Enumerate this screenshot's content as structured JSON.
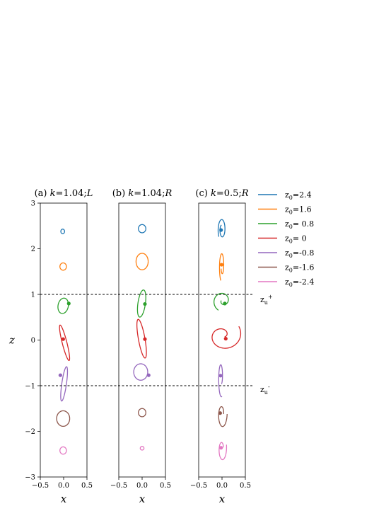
{
  "chart_data": [
    {
      "type": "line",
      "panel": "a",
      "title_prefix": "(a) ",
      "title_k": "k",
      "title_rest": "=1.04;",
      "title_mode": "L",
      "xlabel": "x",
      "ylabel": "z",
      "xlim": [
        -0.5,
        0.5
      ],
      "ylim": [
        -3,
        3
      ],
      "xticks": [
        "−0.5",
        "0.0",
        "0.5"
      ],
      "yticks": [
        "−3",
        "−2",
        "−1",
        "0",
        "1",
        "2",
        "3"
      ],
      "series": [
        {
          "color": "#1f77b4",
          "shape": "loop",
          "cx": -0.02,
          "cz": 2.38,
          "rx": 0.04,
          "rz": 0.05,
          "tilt": 0,
          "dot": null
        },
        {
          "color": "#ff7f0e",
          "shape": "loop",
          "cx": -0.01,
          "cz": 1.61,
          "rx": 0.07,
          "rz": 0.08,
          "tilt": 0,
          "dot": null
        },
        {
          "color": "#2ca02c",
          "shape": "loop",
          "cx": -0.01,
          "cz": 0.75,
          "rx": 0.11,
          "rz": 0.17,
          "tilt": -10,
          "dot": [
            0.11,
            0.8
          ]
        },
        {
          "color": "#d62728",
          "shape": "loop",
          "cx": 0.02,
          "cz": -0.06,
          "rx": 0.05,
          "rz": 0.4,
          "tilt": 14,
          "dot": [
            -0.01,
            0.02
          ]
        },
        {
          "color": "#9467bd",
          "shape": "loop",
          "cx": 0.01,
          "cz": -0.96,
          "rx": 0.05,
          "rz": 0.38,
          "tilt": -8,
          "dot": [
            -0.07,
            -0.77
          ]
        },
        {
          "color": "#8c564b",
          "shape": "loop",
          "cx": -0.01,
          "cz": -1.72,
          "rx": 0.14,
          "rz": 0.17,
          "tilt": 0,
          "dot": null
        },
        {
          "color": "#e377c2",
          "shape": "loop",
          "cx": -0.01,
          "cz": -2.42,
          "rx": 0.07,
          "rz": 0.08,
          "tilt": 0,
          "dot": null
        }
      ]
    },
    {
      "type": "line",
      "panel": "b",
      "title_prefix": "(b) ",
      "title_k": "k",
      "title_rest": "=1.04;",
      "title_mode": "R",
      "xlabel": "x",
      "ylabel": "",
      "xlim": [
        -0.5,
        0.5
      ],
      "ylim": [
        -3,
        3
      ],
      "xticks": [
        "−0.5",
        "0.0",
        "0.5"
      ],
      "yticks": [],
      "series": [
        {
          "color": "#1f77b4",
          "shape": "loop",
          "cx": 0.0,
          "cz": 2.44,
          "rx": 0.08,
          "rz": 0.09,
          "tilt": 0,
          "dot": null
        },
        {
          "color": "#ff7f0e",
          "shape": "loop",
          "cx": 0.0,
          "cz": 1.72,
          "rx": 0.13,
          "rz": 0.18,
          "tilt": 0,
          "dot": null
        },
        {
          "color": "#2ca02c",
          "shape": "loop",
          "cx": -0.01,
          "cz": 0.8,
          "rx": 0.08,
          "rz": 0.3,
          "tilt": -8,
          "dot": [
            0.06,
            0.79
          ]
        },
        {
          "color": "#d62728",
          "shape": "loop",
          "cx": -0.01,
          "cz": 0.03,
          "rx": 0.07,
          "rz": 0.43,
          "tilt": 10,
          "dot": [
            0.06,
            0.02
          ]
        },
        {
          "color": "#9467bd",
          "shape": "loop",
          "cx": -0.03,
          "cz": -0.7,
          "rx": 0.15,
          "rz": 0.18,
          "tilt": 0,
          "dot": [
            0.14,
            -0.77
          ]
        },
        {
          "color": "#8c564b",
          "shape": "loop",
          "cx": 0.0,
          "cz": -1.59,
          "rx": 0.08,
          "rz": 0.09,
          "tilt": 0,
          "dot": null
        },
        {
          "color": "#e377c2",
          "shape": "loop",
          "cx": 0.0,
          "cz": -2.37,
          "rx": 0.04,
          "rz": 0.04,
          "tilt": 0,
          "dot": null
        }
      ]
    },
    {
      "type": "line",
      "panel": "c",
      "title_prefix": "(c) ",
      "title_k": "k",
      "title_rest": "=0.5;",
      "title_mode": "R",
      "xlabel": "x",
      "ylabel": "",
      "xlim": [
        -0.5,
        0.5
      ],
      "ylim": [
        -3,
        3
      ],
      "xticks": [
        "−0.5",
        "0.0",
        "0.5"
      ],
      "yticks": [],
      "series": [
        {
          "color": "#1f77b4",
          "shape": "spiral",
          "cx": 0.0,
          "cz": 2.42,
          "a0": 1.9,
          "r0": 0.035,
          "grow": 0.04,
          "turns": 1.3,
          "sx": 1.0,
          "sz": 1.0,
          "dot": [
            -0.02,
            2.41
          ]
        },
        {
          "color": "#ff7f0e",
          "shape": "spiral",
          "cx": 0.0,
          "cz": 1.62,
          "a0": 3.6,
          "r0": 0.03,
          "grow": 0.05,
          "turns": 1.1,
          "sx": 0.7,
          "sz": 1.4,
          "dot": [
            -0.01,
            1.65
          ]
        },
        {
          "color": "#2ca02c",
          "shape": "spiral",
          "cx": 0.02,
          "cz": 0.86,
          "a0": 3.0,
          "r0": 0.02,
          "grow": 0.09,
          "turns": 1.2,
          "sx": 1.7,
          "sz": 0.6,
          "dot": [
            0.06,
            0.8
          ]
        },
        {
          "color": "#d62728",
          "shape": "spiral",
          "cx": 0.02,
          "cz": 0.1,
          "a0": 5.6,
          "r0": 0.02,
          "grow": 0.13,
          "turns": 1.2,
          "sx": 2.3,
          "sz": 0.7,
          "dot": [
            0.08,
            0.03
          ]
        },
        {
          "color": "#9467bd",
          "shape": "spiral",
          "cx": -0.02,
          "cz": -0.82,
          "a0": 5.0,
          "r0": 0.03,
          "grow": 0.06,
          "turns": 1.0,
          "sx": 0.7,
          "sz": 1.6,
          "dot": [
            -0.03,
            -0.78
          ]
        },
        {
          "color": "#8c564b",
          "shape": "spiral",
          "cx": 0.0,
          "cz": -1.62,
          "a0": 0.0,
          "r0": 0.03,
          "grow": 0.07,
          "turns": 1.0,
          "sx": 1.1,
          "sz": 1.1,
          "dot": [
            -0.04,
            -1.6
          ]
        },
        {
          "color": "#e377c2",
          "shape": "spiral",
          "cx": 0.0,
          "cz": -2.38,
          "a0": 0.3,
          "r0": 0.03,
          "grow": 0.07,
          "turns": 1.0,
          "sx": 1.0,
          "sz": 1.0,
          "dot": [
            -0.02,
            -2.36
          ]
        }
      ]
    }
  ],
  "legend": {
    "entries": [
      {
        "color": "#1f77b4",
        "sub": "0",
        "value": "=2.4"
      },
      {
        "color": "#ff7f0e",
        "sub": "0",
        "value": "=1.6"
      },
      {
        "color": "#2ca02c",
        "sub": "0",
        "value": "= 0.8"
      },
      {
        "color": "#d62728",
        "sub": "0",
        "value": "= 0"
      },
      {
        "color": "#9467bd",
        "sub": "0",
        "value": "=-0.8"
      },
      {
        "color": "#8c564b",
        "sub": "0",
        "value": "=-1.6"
      },
      {
        "color": "#e377c2",
        "sub": "0",
        "value": "=-2.4"
      }
    ],
    "symbol": "z"
  },
  "reference_lines": [
    {
      "z": 1,
      "label": "z",
      "sub": "u",
      "sup": "+"
    },
    {
      "z": -1,
      "label": "z",
      "sub": "u",
      "sup": "-"
    }
  ]
}
